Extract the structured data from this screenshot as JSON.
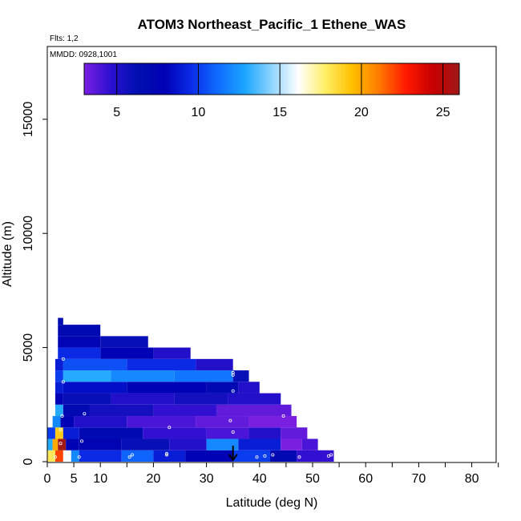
{
  "chart_data": {
    "type": "heatmap",
    "title": "ATOM3 Northeast_Pacific_1 Ethene_WAS",
    "flights_label": "Flts: 1,2",
    "dates_label": "MMDD: 0928,1001",
    "xlabel": "Latitude (deg N)",
    "ylabel": "Altitude (m)",
    "xlim": [
      0,
      85
    ],
    "ylim": [
      0,
      17500
    ],
    "x_ticks": [
      0,
      5,
      10,
      20,
      30,
      40,
      50,
      60,
      70,
      80
    ],
    "y_ticks": [
      0,
      5000,
      10000,
      15000
    ],
    "colorbar": {
      "range": [
        3,
        26
      ],
      "ticks": [
        5,
        10,
        15,
        20,
        25
      ],
      "colors": [
        "#7a1fe0",
        "#2b0fd0",
        "#0010b0",
        "#0000b4",
        "#0a2ce8",
        "#0f6cff",
        "#1aa6ff",
        "#8fd4ff",
        "#ffffff",
        "#ffee66",
        "#ffc000",
        "#ff7a00",
        "#ff1a00",
        "#c80000",
        "#a01818"
      ]
    },
    "bands": [
      {
        "alt_bottom": 0,
        "alt_top": 500,
        "lat_end": 54,
        "segments": [
          [
            0,
            1.5,
            18
          ],
          [
            1.5,
            3,
            22
          ],
          [
            3,
            4.5,
            16
          ],
          [
            4.5,
            6,
            12
          ],
          [
            6,
            14,
            9.5
          ],
          [
            14,
            20,
            11
          ],
          [
            20,
            26,
            9
          ],
          [
            26,
            35,
            8
          ],
          [
            35,
            42,
            10
          ],
          [
            42,
            47,
            7
          ],
          [
            47,
            54,
            4.5
          ]
        ]
      },
      {
        "alt_bottom": 500,
        "alt_top": 1000,
        "lat_end": 51,
        "segments": [
          [
            0,
            1,
            13
          ],
          [
            1,
            2,
            20
          ],
          [
            2,
            3.5,
            26
          ],
          [
            3.5,
            6,
            8
          ],
          [
            6,
            14,
            7.5
          ],
          [
            14,
            23,
            6
          ],
          [
            23,
            30,
            5
          ],
          [
            30,
            36,
            12
          ],
          [
            36,
            44,
            9
          ],
          [
            44,
            48,
            3
          ],
          [
            48,
            51,
            4
          ]
        ]
      },
      {
        "alt_bottom": 1000,
        "alt_top": 1500,
        "lat_end": 49,
        "segments": [
          [
            0,
            1.5,
            10
          ],
          [
            1.5,
            3,
            19
          ],
          [
            3,
            6,
            9
          ],
          [
            6,
            18,
            7
          ],
          [
            18,
            30,
            4.5
          ],
          [
            30,
            38,
            4
          ],
          [
            38,
            44,
            5
          ],
          [
            44,
            49,
            3.5
          ]
        ]
      },
      {
        "alt_bottom": 1500,
        "alt_top": 2000,
        "lat_end": 47,
        "segments": [
          [
            1,
            2.5,
            12
          ],
          [
            2.5,
            5,
            8
          ],
          [
            5,
            15,
            5
          ],
          [
            15,
            28,
            4
          ],
          [
            28,
            38,
            3.5
          ],
          [
            38,
            47,
            3
          ]
        ]
      },
      {
        "alt_bottom": 2000,
        "alt_top": 2500,
        "lat_end": 46,
        "segments": [
          [
            1.5,
            3,
            13
          ],
          [
            3,
            8,
            7
          ],
          [
            8,
            20,
            5.5
          ],
          [
            20,
            32,
            4.5
          ],
          [
            32,
            46,
            3.5
          ]
        ]
      },
      {
        "alt_bottom": 2500,
        "alt_top": 3000,
        "lat_end": 44,
        "segments": [
          [
            1.5,
            3,
            8
          ],
          [
            3,
            12,
            6
          ],
          [
            12,
            24,
            5
          ],
          [
            24,
            34,
            5.5
          ],
          [
            34,
            44,
            5
          ]
        ]
      },
      {
        "alt_bottom": 3000,
        "alt_top": 3500,
        "lat_end": 40,
        "segments": [
          [
            1.5,
            3,
            9
          ],
          [
            3,
            15,
            8.5
          ],
          [
            15,
            30,
            8
          ],
          [
            30,
            36,
            7
          ],
          [
            36,
            40,
            5
          ]
        ]
      },
      {
        "alt_bottom": 3500,
        "alt_top": 4000,
        "lat_end": 38,
        "segments": [
          [
            1.5,
            3,
            10
          ],
          [
            3,
            12,
            13
          ],
          [
            12,
            24,
            12
          ],
          [
            24,
            35,
            11.5
          ],
          [
            35,
            38,
            6
          ]
        ]
      },
      {
        "alt_bottom": 4000,
        "alt_top": 4500,
        "lat_end": 35,
        "segments": [
          [
            1.5,
            3,
            9
          ],
          [
            3,
            15,
            10.5
          ],
          [
            15,
            28,
            9.5
          ],
          [
            28,
            35,
            5
          ]
        ]
      },
      {
        "alt_bottom": 4500,
        "alt_top": 5000,
        "lat_end": 27,
        "segments": [
          [
            2,
            10,
            9.5
          ],
          [
            10,
            20,
            8
          ],
          [
            20,
            27,
            5
          ]
        ]
      },
      {
        "alt_bottom": 5000,
        "alt_top": 5500,
        "lat_end": 19,
        "segments": [
          [
            2,
            10,
            7.5
          ],
          [
            10,
            19,
            6
          ]
        ]
      },
      {
        "alt_bottom": 5500,
        "alt_top": 6000,
        "lat_end": 10,
        "segments": [
          [
            2,
            10,
            7
          ]
        ]
      },
      {
        "alt_bottom": 6000,
        "alt_top": 6300,
        "lat_end": 3,
        "segments": [
          [
            2,
            3,
            6.5
          ]
        ]
      }
    ],
    "sample_points": [
      [
        1.5,
        200
      ],
      [
        2.5,
        800
      ],
      [
        2.5,
        1400
      ],
      [
        2.8,
        2000
      ],
      [
        6,
        200
      ],
      [
        6.5,
        900
      ],
      [
        7,
        2100
      ],
      [
        15.5,
        200
      ],
      [
        16,
        300
      ],
      [
        22.5,
        300
      ],
      [
        22.5,
        350
      ],
      [
        23,
        1500
      ],
      [
        34.5,
        1800
      ],
      [
        35,
        1300
      ],
      [
        35,
        3100
      ],
      [
        35,
        3800
      ],
      [
        35,
        3900
      ],
      [
        39.5,
        200
      ],
      [
        41,
        250
      ],
      [
        42.5,
        300
      ],
      [
        44.5,
        2000
      ],
      [
        47.5,
        200
      ],
      [
        53,
        250
      ],
      [
        53.5,
        300
      ],
      [
        3,
        3500
      ],
      [
        3,
        4500
      ]
    ],
    "arrow": {
      "lat": 35,
      "alt_from": 700,
      "alt_to": 0
    }
  }
}
